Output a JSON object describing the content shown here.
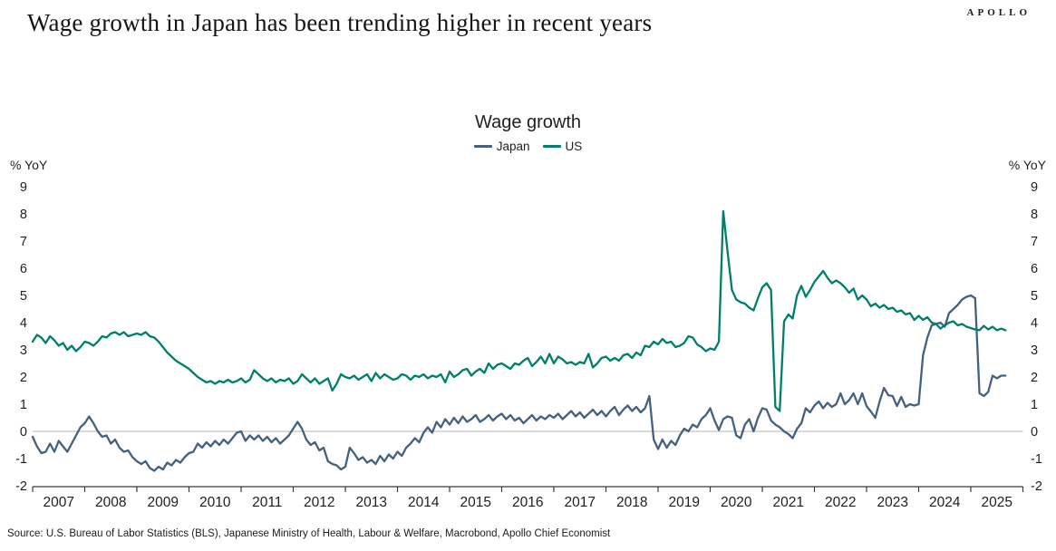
{
  "header": {
    "title": "Wage growth in Japan has been trending higher in recent years",
    "brand": "APOLLO"
  },
  "footer": {
    "source": "Source: U.S. Bureau of Labor Statistics (BLS), Japanese Ministry of Health, Labour & Welfare, Macrobond, Apollo Chief Economist"
  },
  "chart_data": {
    "type": "line",
    "title": "Wage growth",
    "ylabel": "% YoY",
    "ylim": [
      -2,
      9
    ],
    "y_ticks": [
      9,
      8,
      7,
      6,
      5,
      4,
      3,
      2,
      1,
      0,
      -1,
      -2
    ],
    "x_range": [
      2007,
      2026
    ],
    "x_tick_labels": [
      "2007",
      "2008",
      "2009",
      "2010",
      "2011",
      "2012",
      "2013",
      "2014",
      "2015",
      "2016",
      "2017",
      "2018",
      "2019",
      "2020",
      "2021",
      "2022",
      "2023",
      "2024",
      "2025"
    ],
    "grid": "off",
    "zero_line": true,
    "legend_position": "top-center",
    "axis_color": "#3a3a3a",
    "zero_line_color": "#b5b5b5",
    "series": [
      {
        "name": "Japan",
        "color": "#44617E",
        "start_year": 2007,
        "points_per_year": 12,
        "values": [
          -0.2,
          -0.55,
          -0.8,
          -0.75,
          -0.45,
          -0.75,
          -0.35,
          -0.55,
          -0.75,
          -0.45,
          -0.15,
          0.15,
          0.3,
          0.55,
          0.3,
          0.0,
          -0.2,
          -0.15,
          -0.45,
          -0.3,
          -0.6,
          -0.75,
          -0.7,
          -0.95,
          -1.1,
          -1.2,
          -1.1,
          -1.35,
          -1.45,
          -1.3,
          -1.4,
          -1.15,
          -1.25,
          -1.05,
          -1.15,
          -0.95,
          -0.8,
          -0.75,
          -0.45,
          -0.6,
          -0.4,
          -0.55,
          -0.35,
          -0.5,
          -0.3,
          -0.45,
          -0.25,
          -0.05,
          0.0,
          -0.35,
          -0.15,
          -0.3,
          -0.15,
          -0.35,
          -0.2,
          -0.4,
          -0.25,
          -0.45,
          -0.3,
          -0.15,
          0.1,
          0.35,
          0.1,
          -0.3,
          -0.5,
          -0.4,
          -0.7,
          -0.6,
          -1.1,
          -1.2,
          -1.25,
          -1.4,
          -1.3,
          -0.6,
          -0.8,
          -1.05,
          -0.95,
          -1.15,
          -1.05,
          -1.2,
          -0.9,
          -1.1,
          -0.85,
          -1.0,
          -0.75,
          -0.9,
          -0.6,
          -0.45,
          -0.25,
          -0.4,
          -0.05,
          0.15,
          -0.05,
          0.35,
          0.15,
          0.45,
          0.25,
          0.5,
          0.3,
          0.55,
          0.35,
          0.45,
          0.6,
          0.35,
          0.45,
          0.6,
          0.4,
          0.55,
          0.65,
          0.45,
          0.6,
          0.4,
          0.5,
          0.3,
          0.45,
          0.6,
          0.4,
          0.55,
          0.45,
          0.6,
          0.5,
          0.65,
          0.45,
          0.6,
          0.75,
          0.55,
          0.7,
          0.5,
          0.65,
          0.8,
          0.6,
          0.75,
          0.55,
          0.75,
          0.9,
          0.6,
          0.8,
          0.95,
          0.75,
          0.9,
          0.7,
          0.85,
          1.3,
          -0.3,
          -0.65,
          -0.3,
          -0.6,
          -0.35,
          -0.5,
          -0.15,
          0.1,
          0.0,
          0.25,
          0.15,
          0.45,
          0.6,
          0.85,
          0.4,
          0.05,
          0.45,
          0.55,
          0.5,
          -0.15,
          -0.25,
          0.25,
          0.45,
          0.0,
          0.5,
          0.85,
          0.8,
          0.4,
          0.25,
          0.15,
          0.0,
          -0.1,
          -0.25,
          0.1,
          0.3,
          0.85,
          0.7,
          0.95,
          1.1,
          0.85,
          1.05,
          0.9,
          1.0,
          1.4,
          1.0,
          1.15,
          1.4,
          1.0,
          1.4,
          0.93,
          0.73,
          0.5,
          1.1,
          1.6,
          1.33,
          1.3,
          0.93,
          1.27,
          0.9,
          1.0,
          0.95,
          1.0,
          2.8,
          3.45,
          3.9,
          3.95,
          4.0,
          3.85,
          4.35,
          4.5,
          4.65,
          4.85,
          4.95,
          5.0,
          4.9,
          1.4,
          1.3,
          1.45,
          2.05,
          1.95,
          2.05,
          2.05
        ]
      },
      {
        "name": "US",
        "color": "#00806B",
        "start_year": 2007,
        "points_per_year": 12,
        "values": [
          3.3,
          3.55,
          3.45,
          3.25,
          3.5,
          3.35,
          3.15,
          3.25,
          3.0,
          3.15,
          2.95,
          3.1,
          3.3,
          3.25,
          3.15,
          3.3,
          3.5,
          3.45,
          3.6,
          3.65,
          3.55,
          3.65,
          3.5,
          3.55,
          3.6,
          3.55,
          3.65,
          3.5,
          3.45,
          3.3,
          3.1,
          2.9,
          2.75,
          2.6,
          2.5,
          2.4,
          2.3,
          2.15,
          2.0,
          1.9,
          1.8,
          1.85,
          1.75,
          1.85,
          1.8,
          1.9,
          1.8,
          1.85,
          1.95,
          1.8,
          1.9,
          2.25,
          2.1,
          1.95,
          1.85,
          1.95,
          1.8,
          1.9,
          1.85,
          1.95,
          1.75,
          1.85,
          2.1,
          1.95,
          1.8,
          1.95,
          1.75,
          1.85,
          1.95,
          1.5,
          1.75,
          2.1,
          2.0,
          1.95,
          2.05,
          1.9,
          2.0,
          2.1,
          1.85,
          2.15,
          1.95,
          2.1,
          2.0,
          1.9,
          1.95,
          2.1,
          2.05,
          1.9,
          2.05,
          2.0,
          2.1,
          1.95,
          2.05,
          2.0,
          2.1,
          1.8,
          2.2,
          2.0,
          2.1,
          2.25,
          2.3,
          2.05,
          2.2,
          2.3,
          2.15,
          2.5,
          2.3,
          2.45,
          2.5,
          2.4,
          2.3,
          2.5,
          2.45,
          2.6,
          2.7,
          2.4,
          2.55,
          2.75,
          2.5,
          2.85,
          2.5,
          2.75,
          2.65,
          2.5,
          2.55,
          2.45,
          2.55,
          2.5,
          2.85,
          2.35,
          2.5,
          2.7,
          2.75,
          2.6,
          2.7,
          2.6,
          2.8,
          2.85,
          2.7,
          2.9,
          2.8,
          3.15,
          3.1,
          3.3,
          3.2,
          3.4,
          3.25,
          3.3,
          3.1,
          3.15,
          3.25,
          3.5,
          3.45,
          3.2,
          3.1,
          2.95,
          3.05,
          3.0,
          3.3,
          8.1,
          6.6,
          5.2,
          4.85,
          4.75,
          4.7,
          4.55,
          4.45,
          4.9,
          5.3,
          5.45,
          5.2,
          0.9,
          0.75,
          4.05,
          4.3,
          4.15,
          5.0,
          5.35,
          4.95,
          5.2,
          5.5,
          5.7,
          5.9,
          5.65,
          5.45,
          5.55,
          5.45,
          5.3,
          5.1,
          5.25,
          4.85,
          5.0,
          4.85,
          4.6,
          4.7,
          4.55,
          4.65,
          4.5,
          4.55,
          4.4,
          4.45,
          4.3,
          4.35,
          4.1,
          4.25,
          4.1,
          4.2,
          4.0,
          3.95,
          3.78,
          3.9,
          4.0,
          4.05,
          3.9,
          3.95,
          3.85,
          3.8,
          3.75,
          3.72,
          3.88,
          3.75,
          3.85,
          3.72,
          3.78,
          3.72
        ]
      }
    ]
  }
}
